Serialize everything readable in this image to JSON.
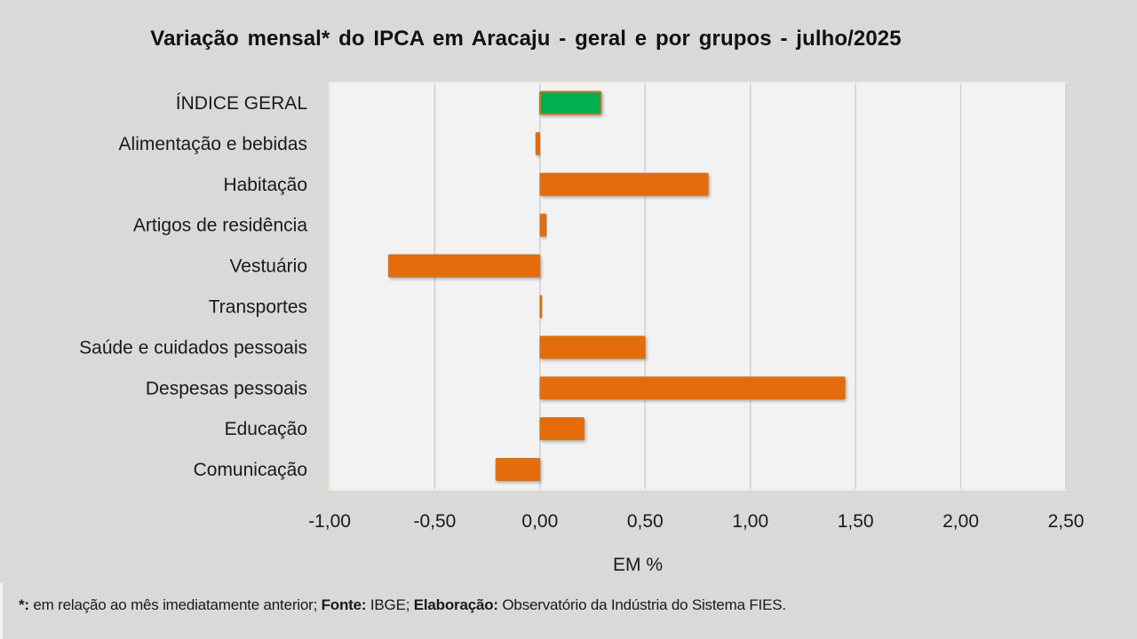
{
  "chart_data": {
    "type": "bar",
    "orientation": "horizontal",
    "title": "Variação  mensal* do IPCA em Aracaju  - geral e por grupos  - julho/2025",
    "xlabel": "EM %",
    "ylabel": "",
    "categories": [
      "ÍNDICE GERAL",
      "Alimentação e bebidas",
      "Habitação",
      "Artigos de residência",
      "Vestuário",
      "Transportes",
      "Saúde e cuidados pessoais",
      "Despesas pessoais",
      "Educação",
      "Comunicação"
    ],
    "values": [
      0.29,
      -0.02,
      0.8,
      0.03,
      -0.72,
      0.01,
      0.5,
      1.45,
      0.21,
      -0.21
    ],
    "bar_colors": [
      "#00b050",
      "#e46c0a",
      "#e46c0a",
      "#e46c0a",
      "#e46c0a",
      "#e46c0a",
      "#e46c0a",
      "#e46c0a",
      "#e46c0a",
      "#e46c0a"
    ],
    "bar_border_color": "#c5792a",
    "xlim": [
      -1.0,
      2.5
    ],
    "xticks": [
      -1.0,
      -0.5,
      0.0,
      0.5,
      1.0,
      1.5,
      2.0,
      2.5
    ],
    "xtick_labels": [
      "-1,00",
      "-0,50",
      "0,00",
      "0,50",
      "1,00",
      "1,50",
      "2,00",
      "2,50"
    ],
    "grid": "vertical",
    "legend": "none"
  },
  "footnote": {
    "star_label": "*:",
    "star_text": " em relação ao mês imediatamente  anterior; ",
    "source_label": "Fonte:",
    "source_text": " IBGE; ",
    "elaboration_label": "Elaboração:",
    "elaboration_text": " Observatório da Indústria do Sistema FIES."
  }
}
